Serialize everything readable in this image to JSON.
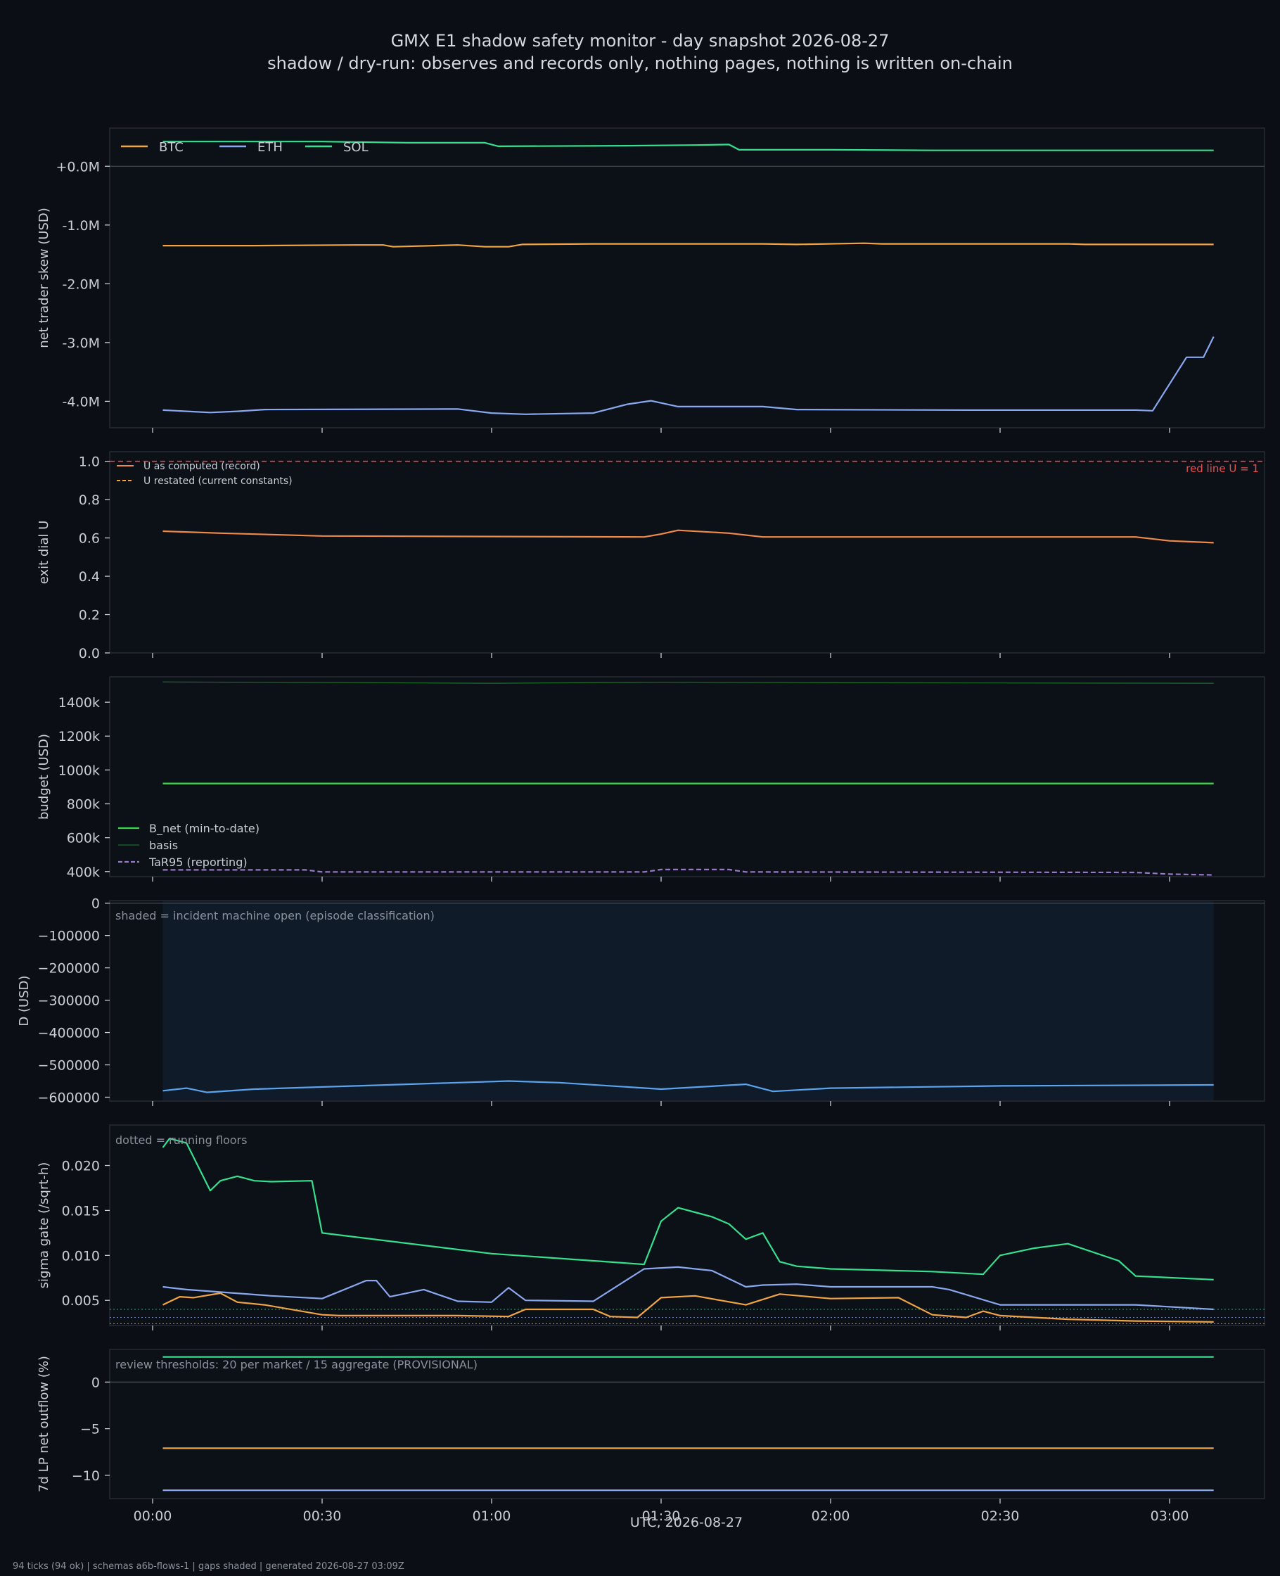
{
  "title": "GMX E1 shadow safety monitor - day snapshot 2026-08-27",
  "subtitle": "shadow / dry-run: observes and records only, nothing pages, nothing is written on-chain",
  "footer": "94 ticks (94 ok) | schemas a6b-flows-1 | gaps shaded | generated 2026-08-27 03:09Z",
  "xlabel": "UTC, 2026-08-27",
  "x_ticks": [
    "00:00",
    "00:30",
    "01:00",
    "01:30",
    "02:00",
    "02:30",
    "03:00"
  ],
  "colors": {
    "background": "#0b0e14",
    "panel": "#0c1017",
    "text": "#c9ced6",
    "muted": "#8a919c",
    "btc": "#f0a443",
    "eth": "#8aa8f0",
    "sol": "#35e08f",
    "u": "#f08a4a",
    "red_line": "#e85050",
    "bnet": "#38d84a",
    "basis": "#1d6e2c",
    "tar95": "#9a78c8",
    "d": "#5aa4ee",
    "shade": "#0f1d2a"
  },
  "chart_data": [
    {
      "type": "line",
      "ylabel": "net trader skew (USD)",
      "x_range_hours": [
        -0.03,
        3.3
      ],
      "ylim": [
        -4.45,
        0.65
      ],
      "y_tick_values": [
        0,
        -1,
        -2,
        -3,
        -4
      ],
      "y_tick_labels": [
        "+0.0M",
        "-1.0M",
        "-2.0M",
        "-3.0M",
        "-4.0M"
      ],
      "legend": [
        "BTC",
        "ETH",
        "SOL"
      ],
      "legend_position": "top-left",
      "series": [
        {
          "name": "BTC",
          "color_key": "btc",
          "x": [
            0.03,
            0.3,
            0.6,
            0.68,
            0.71,
            0.9,
            0.98,
            1.05,
            1.09,
            1.3,
            1.5,
            1.8,
            1.9,
            2.1,
            2.15,
            2.3,
            2.7,
            2.75,
            3.0,
            3.13
          ],
          "y": [
            -1.35,
            -1.35,
            -1.34,
            -1.34,
            -1.37,
            -1.34,
            -1.37,
            -1.37,
            -1.33,
            -1.32,
            -1.32,
            -1.32,
            -1.33,
            -1.31,
            -1.32,
            -1.32,
            -1.32,
            -1.33,
            -1.33,
            -1.33
          ]
        },
        {
          "name": "ETH",
          "color_key": "eth",
          "x": [
            0.03,
            0.1,
            0.17,
            0.25,
            0.33,
            0.9,
            1.0,
            1.1,
            1.3,
            1.4,
            1.47,
            1.55,
            1.8,
            1.9,
            2.4,
            2.9,
            2.95,
            3.05,
            3.1,
            3.13
          ],
          "y": [
            -4.15,
            -4.17,
            -4.19,
            -4.17,
            -4.14,
            -4.13,
            -4.2,
            -4.22,
            -4.2,
            -4.05,
            -3.99,
            -4.09,
            -4.09,
            -4.14,
            -4.15,
            -4.15,
            -4.16,
            -3.25,
            -3.25,
            -2.9
          ]
        },
        {
          "name": "SOL",
          "color_key": "sol",
          "x": [
            0.03,
            0.5,
            0.75,
            0.98,
            1.02,
            1.4,
            1.6,
            1.7,
            1.73,
            2.0,
            2.3,
            2.6,
            3.13
          ],
          "y": [
            0.42,
            0.42,
            0.4,
            0.4,
            0.34,
            0.35,
            0.36,
            0.37,
            0.28,
            0.28,
            0.27,
            0.27,
            0.27
          ]
        }
      ]
    },
    {
      "type": "line",
      "ylabel": "exit dial U",
      "x_range_hours": [
        -0.03,
        3.3
      ],
      "ylim": [
        0.0,
        1.05
      ],
      "y_tick_values": [
        0,
        0.2,
        0.4,
        0.6,
        0.8,
        1.0
      ],
      "y_tick_labels": [
        "0.0",
        "0.2",
        "0.4",
        "0.6",
        "0.8",
        "1.0"
      ],
      "legend": [
        "U as computed (record)",
        "U restated (current constants)"
      ],
      "legend_position": "top-left",
      "annotation": "red line U = 1",
      "red_line": 1.0,
      "series": [
        {
          "name": "U as computed (record)",
          "color_key": "u",
          "x": [
            0.03,
            0.2,
            0.5,
            1.45,
            1.5,
            1.55,
            1.7,
            1.8,
            2.5,
            2.9,
            3.0,
            3.13
          ],
          "y": [
            0.635,
            0.625,
            0.61,
            0.605,
            0.62,
            0.64,
            0.625,
            0.605,
            0.605,
            0.605,
            0.585,
            0.575
          ]
        },
        {
          "name": "U restated (current constants)",
          "color_key": "btc",
          "dashed": true,
          "x": [],
          "y": []
        }
      ]
    },
    {
      "type": "line",
      "ylabel": "budget (USD)",
      "x_range_hours": [
        -0.03,
        3.3
      ],
      "ylim": [
        370,
        1550
      ],
      "y_tick_values": [
        400,
        600,
        800,
        1000,
        1200,
        1400
      ],
      "y_tick_labels": [
        "400k",
        "600k",
        "800k",
        "1000k",
        "1200k",
        "1400k"
      ],
      "legend": [
        "B_net (min-to-date)",
        "basis",
        "TaR95 (reporting)"
      ],
      "legend_position": "bottom-left",
      "series": [
        {
          "name": "B_net (min-to-date)",
          "color_key": "bnet",
          "x": [
            0.03,
            3.13
          ],
          "y": [
            920,
            920
          ]
        },
        {
          "name": "basis",
          "color_key": "basis",
          "x": [
            0.03,
            1.0,
            1.5,
            2.0,
            3.13
          ],
          "y": [
            1520,
            1512,
            1518,
            1515,
            1512
          ]
        },
        {
          "name": "TaR95 (reporting)",
          "color_key": "tar95",
          "dashed": true,
          "x": [
            0.03,
            0.45,
            0.5,
            1.45,
            1.5,
            1.7,
            1.75,
            2.9,
            3.0,
            3.13
          ],
          "y": [
            410,
            410,
            398,
            398,
            412,
            412,
            398,
            395,
            385,
            380
          ]
        }
      ]
    },
    {
      "type": "line",
      "ylabel": "D (USD)",
      "x_range_hours": [
        -0.03,
        3.3
      ],
      "ylim": [
        -612000,
        8000
      ],
      "y_tick_values": [
        0,
        -100000,
        -200000,
        -300000,
        -400000,
        -500000,
        -600000
      ],
      "y_tick_labels": [
        "0",
        "−100000",
        "−200000",
        "−300000",
        "−400000",
        "−500000",
        "−600000"
      ],
      "annotation": "shaded = incident machine open (episode classification)",
      "shaded_span_hours": [
        0.03,
        3.13
      ],
      "series": [
        {
          "name": "D",
          "color_key": "d",
          "x": [
            0.03,
            0.1,
            0.16,
            0.3,
            0.6,
            1.05,
            1.2,
            1.5,
            1.75,
            1.83,
            2.0,
            2.5,
            3.13
          ],
          "y": [
            -580000,
            -572000,
            -585000,
            -575000,
            -565000,
            -550000,
            -555000,
            -575000,
            -560000,
            -582000,
            -572000,
            -565000,
            -562000
          ]
        }
      ]
    },
    {
      "type": "line",
      "ylabel": "sigma gate (/sqrt-h)",
      "x_range_hours": [
        -0.03,
        3.3
      ],
      "ylim": [
        0.0022,
        0.0245
      ],
      "y_tick_values": [
        0.005,
        0.01,
        0.015,
        0.02
      ],
      "y_tick_labels": [
        "0.005",
        "0.010",
        "0.015",
        "0.020"
      ],
      "annotation": "dotted = running floors",
      "floors": [
        {
          "color_key": "sol",
          "value": 0.004
        },
        {
          "color_key": "eth",
          "value": 0.0031
        },
        {
          "color_key": "btc",
          "value": 0.0024
        }
      ],
      "series": [
        {
          "name": "SOL",
          "color_key": "sol",
          "x": [
            0.03,
            0.05,
            0.1,
            0.17,
            0.2,
            0.25,
            0.3,
            0.35,
            0.47,
            0.5,
            1.0,
            1.45,
            1.5,
            1.55,
            1.6,
            1.65,
            1.7,
            1.75,
            1.8,
            1.85,
            1.9,
            2.0,
            2.3,
            2.45,
            2.5,
            2.6,
            2.7,
            2.85,
            2.9,
            3.13
          ],
          "y": [
            0.022,
            0.023,
            0.0225,
            0.0172,
            0.0183,
            0.0188,
            0.0183,
            0.0182,
            0.0183,
            0.0125,
            0.0102,
            0.009,
            0.0138,
            0.0153,
            0.0148,
            0.0143,
            0.0135,
            0.0118,
            0.0125,
            0.0093,
            0.0088,
            0.0085,
            0.0082,
            0.0079,
            0.01,
            0.0108,
            0.0113,
            0.0094,
            0.0077,
            0.0073
          ]
        },
        {
          "name": "ETH",
          "color_key": "eth",
          "x": [
            0.03,
            0.1,
            0.35,
            0.5,
            0.63,
            0.66,
            0.7,
            0.8,
            0.9,
            1.0,
            1.05,
            1.1,
            1.3,
            1.45,
            1.55,
            1.65,
            1.75,
            1.8,
            1.9,
            2.0,
            2.3,
            2.35,
            2.5,
            2.9,
            3.13
          ],
          "y": [
            0.0065,
            0.0062,
            0.0055,
            0.0052,
            0.0072,
            0.0072,
            0.0054,
            0.0062,
            0.0049,
            0.0048,
            0.0064,
            0.005,
            0.0049,
            0.0085,
            0.0087,
            0.0083,
            0.0065,
            0.0067,
            0.0068,
            0.0065,
            0.0065,
            0.0062,
            0.0045,
            0.0045,
            0.004
          ]
        },
        {
          "name": "BTC",
          "color_key": "btc",
          "x": [
            0.03,
            0.08,
            0.12,
            0.2,
            0.25,
            0.33,
            0.5,
            0.55,
            0.9,
            1.05,
            1.1,
            1.3,
            1.35,
            1.43,
            1.5,
            1.6,
            1.75,
            1.85,
            2.0,
            2.2,
            2.3,
            2.4,
            2.45,
            2.5,
            2.7,
            2.9,
            3.13
          ],
          "y": [
            0.0045,
            0.0054,
            0.0053,
            0.0058,
            0.0048,
            0.0045,
            0.0034,
            0.0033,
            0.0033,
            0.0032,
            0.004,
            0.004,
            0.0032,
            0.0031,
            0.0053,
            0.0055,
            0.0045,
            0.0057,
            0.0052,
            0.0053,
            0.0034,
            0.0031,
            0.0038,
            0.0033,
            0.0029,
            0.0027,
            0.0026
          ]
        }
      ]
    },
    {
      "type": "line",
      "ylabel": "7d LP net outflow (%)",
      "x_range_hours": [
        -0.03,
        3.3
      ],
      "ylim": [
        -12.5,
        3.5
      ],
      "y_tick_values": [
        0,
        -5,
        -10
      ],
      "y_tick_labels": [
        "0",
        "−5",
        "−10"
      ],
      "annotation": "review thresholds: 20 per market / 15 aggregate (PROVISIONAL)",
      "series": [
        {
          "name": "SOL",
          "color_key": "sol",
          "x": [
            0.03,
            3.13
          ],
          "y": [
            2.7,
            2.7
          ]
        },
        {
          "name": "BTC",
          "color_key": "btc",
          "x": [
            0.03,
            3.13
          ],
          "y": [
            -7.1,
            -7.1
          ]
        },
        {
          "name": "ETH",
          "color_key": "eth",
          "x": [
            0.03,
            3.13
          ],
          "y": [
            -11.6,
            -11.6
          ]
        }
      ]
    }
  ]
}
